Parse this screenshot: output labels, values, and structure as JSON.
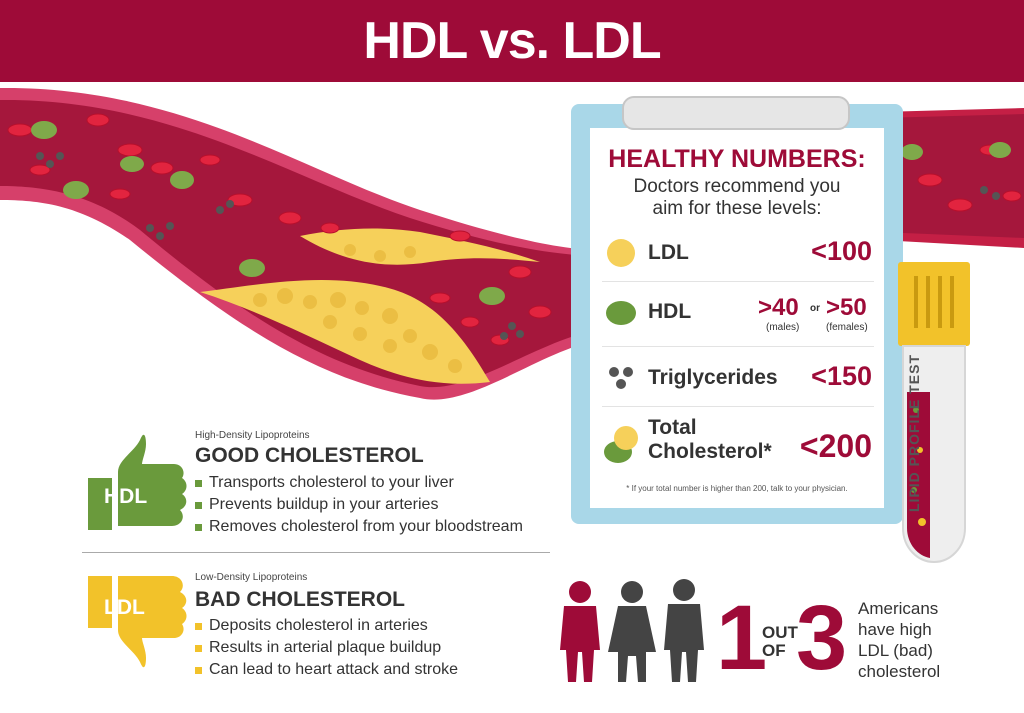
{
  "header": {
    "title": "HDL vs. LDL"
  },
  "healthy_numbers": {
    "title": "HEALTHY NUMBERS:",
    "subtitle_line1": "Doctors recommend you",
    "subtitle_line2": "aim for these levels:",
    "rows": [
      {
        "label": "LDL",
        "value": "<100"
      },
      {
        "label": "HDL",
        "value_males": ">40",
        "or_text": "or",
        "value_females": ">50",
        "males_label": "(males)",
        "females_label": "(females)"
      },
      {
        "label": "Triglycerides",
        "value": "<150"
      },
      {
        "label_line1": "Total",
        "label_line2": "Cholesterol*",
        "value": "<200"
      }
    ],
    "footnote": "* If your total number is higher than 200, talk to your physician."
  },
  "tube": {
    "label": "LIPID PROFILE TEST"
  },
  "good": {
    "small_label": "High-Density Lipoproteins",
    "badge": "HDL",
    "title": "GOOD CHOLESTEROL",
    "bullets": [
      "Transports cholesterol to your liver",
      "Prevents buildup in your arteries",
      "Removes cholesterol from your bloodstream"
    ]
  },
  "bad": {
    "small_label": "Low-Density Lipoproteins",
    "badge": "LDL",
    "title": "BAD CHOLESTEROL",
    "bullets": [
      "Deposits cholesterol in arteries",
      "Results in arterial plaque buildup",
      "Can lead to heart attack and stroke"
    ]
  },
  "stat": {
    "num1": "1",
    "out_of_line1": "OUT",
    "out_of_line2": "OF",
    "num2": "3",
    "text_lines": [
      "Americans",
      "have high",
      "LDL (bad)",
      "cholesterol"
    ]
  },
  "colors": {
    "brand": "#9e0b38",
    "hdl_green": "#6a9a3c",
    "ldl_yellow": "#f2c22a",
    "clipboard_blue": "#a9d7e8"
  },
  "icons": [
    "artery-illustration",
    "thumbs-up-icon",
    "thumbs-down-icon",
    "clipboard-icon",
    "test-tube-icon",
    "people-icon"
  ]
}
